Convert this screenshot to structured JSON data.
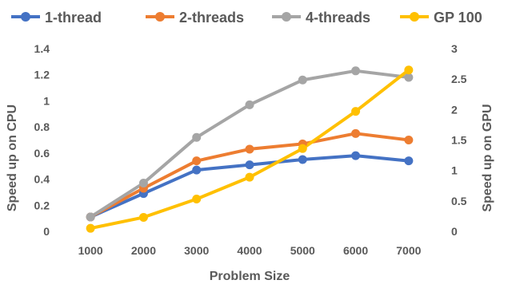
{
  "chart_data": {
    "type": "line",
    "xlabel": "Problem Size",
    "ylabel_left": "Speed up on CPU",
    "ylabel_right": "Speed up on GPU",
    "categories": [
      "1000",
      "2000",
      "3000",
      "4000",
      "5000",
      "6000",
      "7000"
    ],
    "y_left": {
      "min": 0,
      "max": 1.4,
      "ticks": [
        "0",
        "0.2",
        "0.4",
        "0.6",
        "0.8",
        "1",
        "1.2",
        "1.4"
      ]
    },
    "y_right": {
      "min": 0,
      "max": 3,
      "ticks": [
        "0",
        "0.5",
        "1",
        "1.5",
        "2",
        "2.5",
        "3"
      ]
    },
    "grid": false,
    "legend_position": "top",
    "series": [
      {
        "name": "1-thread",
        "color": "#4472C4",
        "axis": "left",
        "values": [
          0.11,
          0.29,
          0.47,
          0.51,
          0.55,
          0.58,
          0.54
        ]
      },
      {
        "name": "2-threads",
        "color": "#ED7D31",
        "axis": "left",
        "values": [
          0.11,
          0.33,
          0.54,
          0.63,
          0.67,
          0.75,
          0.7
        ]
      },
      {
        "name": "4-threads",
        "color": "#A5A5A5",
        "axis": "left",
        "values": [
          0.11,
          0.37,
          0.72,
          0.97,
          1.16,
          1.23,
          1.18
        ]
      },
      {
        "name": "GP 100",
        "color": "#FFC000",
        "axis": "right",
        "values": [
          0.05,
          0.23,
          0.53,
          0.89,
          1.36,
          1.97,
          2.65
        ]
      }
    ]
  }
}
